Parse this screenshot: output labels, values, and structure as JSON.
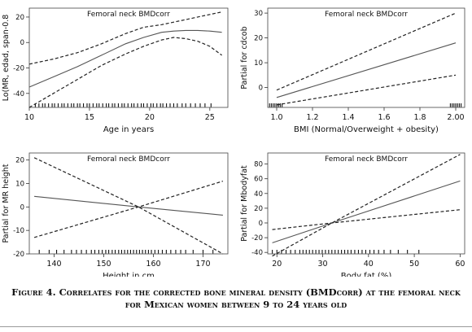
{
  "caption": {
    "line1": "Figure 4. Correlates for the corrected bone mineral density (BMDcorr) at the femoral neck",
    "line2": "for Mexican women  between 9 to 24 years old"
  },
  "chart_data": [
    {
      "type": "line",
      "title": "Femoral neck BMDcorr",
      "xlabel": "Age in years",
      "ylabel": "Lo(MR, edad, span-0.8",
      "xlim": [
        10,
        26.5
      ],
      "ylim": [
        -51,
        27
      ],
      "xticks": [
        10,
        15,
        20,
        25
      ],
      "yticks": [
        -40,
        -20,
        0,
        20
      ],
      "x": [
        10,
        12,
        14,
        16,
        18,
        19.5,
        21,
        22,
        23,
        24,
        25,
        26
      ],
      "series": [
        {
          "role": "fit",
          "style": "solid",
          "values": [
            -35,
            -27,
            -19,
            -10,
            -1,
            4,
            8,
            9,
            9.5,
            9.5,
            9,
            8
          ]
        },
        {
          "role": "upper",
          "style": "dashed",
          "values": [
            -17,
            -13,
            -8,
            -1,
            7,
            12,
            14,
            16,
            18,
            20,
            22,
            24
          ]
        },
        {
          "role": "lower",
          "style": "dashed",
          "values": [
            -51,
            -40,
            -29,
            -18,
            -9,
            -3,
            2,
            4,
            3,
            1,
            -3,
            -10
          ]
        }
      ],
      "rug": [
        10.5,
        10.8,
        11.1,
        11.3,
        11.6,
        11.9,
        12.1,
        12.4,
        12.7,
        12.9,
        13.2,
        13.5,
        13.7,
        14,
        14.2,
        14.5,
        14.8,
        15,
        15.3,
        15.6,
        15.8,
        16.1,
        16.4,
        16.6,
        16.9,
        17.1,
        17.4,
        17.7,
        17.9,
        18.2,
        18.5,
        18.7,
        19,
        19.3,
        19.5,
        19.8,
        20.1,
        20.3,
        20.6,
        20.9,
        21.1,
        21.4,
        21.7,
        22,
        22.3,
        22.7,
        23,
        23.4,
        23.8,
        24.2,
        24.6,
        25.1
      ]
    },
    {
      "type": "line",
      "title": "Femoral neck BMDcorr",
      "xlabel": "BMI (Normal/Overweight + obesity)",
      "ylabel": "Partial for cdcob",
      "xlim": [
        0.95,
        2.05
      ],
      "ylim": [
        -8,
        32
      ],
      "xticks": [
        1.0,
        1.2,
        1.4,
        1.6,
        1.8,
        2.0
      ],
      "xtick_labels": [
        "1.0",
        "1.2",
        "1.4",
        "1.6",
        "1.8",
        "2.00"
      ],
      "yticks": [
        0,
        10,
        20,
        30
      ],
      "x": [
        1.0,
        2.0
      ],
      "series": [
        {
          "role": "fit",
          "style": "solid",
          "values": [
            -4,
            18
          ]
        },
        {
          "role": "upper",
          "style": "dashed",
          "values": [
            -1,
            30
          ]
        },
        {
          "role": "lower",
          "style": "dashed",
          "values": [
            -7,
            5
          ]
        }
      ],
      "rug": [
        0.96,
        0.97,
        0.98,
        0.99,
        1.0,
        1.01,
        1.02,
        1.03,
        1.97,
        1.98,
        1.99,
        2.0,
        2.01,
        2.02,
        2.03
      ]
    },
    {
      "type": "line",
      "title": "Femoral neck BMDcorr",
      "xlabel": "Height in cm",
      "ylabel": "Partial for MR height",
      "xlim": [
        135,
        175
      ],
      "ylim": [
        -20,
        23
      ],
      "xticks": [
        140,
        150,
        160,
        170
      ],
      "yticks": [
        -20,
        -10,
        0,
        10,
        20
      ],
      "x": [
        136,
        157,
        174
      ],
      "series": [
        {
          "role": "fit",
          "style": "solid",
          "values": [
            4.5,
            0,
            -3.5
          ]
        },
        {
          "role": "upper",
          "style": "dashed",
          "values": [
            21,
            0,
            -20
          ]
        },
        {
          "role": "lower",
          "style": "dashed",
          "values": [
            -13,
            0,
            11
          ]
        }
      ],
      "rug": [
        137,
        139,
        140.5,
        142,
        143.5,
        144.5,
        145.5,
        146.5,
        147.5,
        148.2,
        149,
        149.7,
        150.4,
        151,
        151.7,
        152.3,
        153,
        153.6,
        154.2,
        154.8,
        155.4,
        156,
        156.6,
        157.2,
        157.8,
        158.4,
        159,
        159.6,
        160.3,
        161,
        161.8,
        162.6,
        163.5,
        164.5,
        165.5,
        166.5,
        168,
        170,
        172
      ]
    },
    {
      "type": "line",
      "title": "Femoral neck BMDcorr",
      "xlabel": "Body fat (%)",
      "ylabel": "Partial for Mbodyfat",
      "xlim": [
        18,
        61
      ],
      "ylim": [
        -42,
        95
      ],
      "xticks": [
        20,
        30,
        40,
        50,
        60
      ],
      "yticks": [
        -40,
        -20,
        0,
        20,
        40,
        60,
        80
      ],
      "x": [
        19,
        32,
        60
      ],
      "series": [
        {
          "role": "fit",
          "style": "solid",
          "values": [
            -27,
            0,
            57
          ]
        },
        {
          "role": "upper",
          "style": "dashed",
          "values": [
            -9,
            0,
            18
          ]
        },
        {
          "role": "lower",
          "style": "dashed",
          "values": [
            -45,
            0,
            93
          ]
        }
      ],
      "rug": [
        19,
        20,
        21,
        22,
        23,
        24,
        25,
        25.7,
        26.4,
        27.1,
        27.8,
        28.5,
        29.2,
        29.9,
        30.6,
        31.3,
        32,
        32.7,
        33.4,
        34.1,
        34.8,
        35.5,
        36.2,
        37,
        37.8,
        38.6,
        39.4,
        40.3,
        41.2,
        42.2,
        43.4,
        44.8,
        46.5,
        48.5,
        51
      ]
    }
  ]
}
